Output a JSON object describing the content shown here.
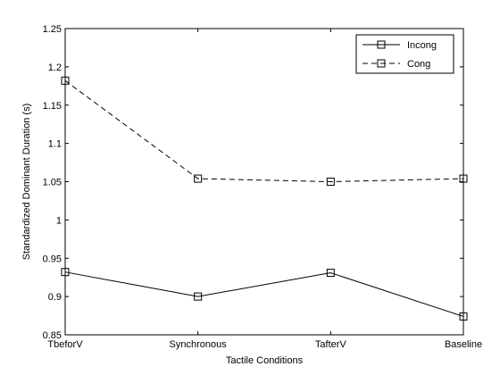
{
  "chart_data": {
    "type": "line",
    "categories": [
      "TbeforV",
      "Synchronous",
      "TafterV",
      "Baseline"
    ],
    "xlabel": "Tactile Conditions",
    "ylabel": "Standardized Dominant Duration (s)",
    "ylim": [
      0.85,
      1.25
    ],
    "yticks": [
      0.85,
      0.9,
      0.95,
      1,
      1.05,
      1.1,
      1.15,
      1.2,
      1.25
    ],
    "ytick_labels": [
      "0.85",
      "0.9",
      "0.95",
      "1",
      "1.05",
      "1.1",
      "1.15",
      "1.2",
      "1.25"
    ],
    "grid": false,
    "legend_position": "top-right",
    "series": [
      {
        "name": "Incong",
        "values": [
          0.932,
          0.9,
          0.931,
          0.874
        ],
        "line_style": "solid",
        "marker": "square",
        "color": "#000000"
      },
      {
        "name": "Cong",
        "values": [
          1.182,
          1.054,
          1.05,
          1.054
        ],
        "line_style": "dashed",
        "marker": "square",
        "color": "#000000"
      }
    ]
  }
}
